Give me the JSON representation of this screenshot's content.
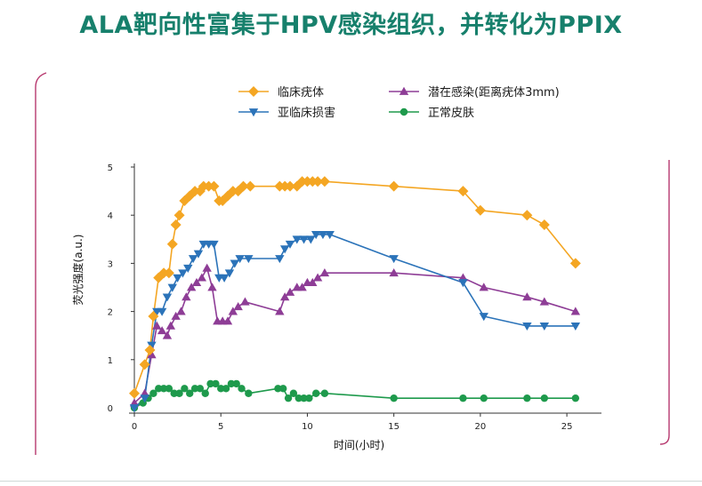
{
  "slide": {
    "title": "ALA靶向性富集于HPV感染组织，并转化为PPIX"
  },
  "chart_data": {
    "type": "line",
    "title": "",
    "xlabel": "时间(小时)",
    "ylabel": "荧光强度(a.u.)",
    "xlim": [
      0,
      27
    ],
    "ylim": [
      0,
      5
    ],
    "xticks": [
      0,
      5,
      10,
      15,
      20,
      25
    ],
    "yticks": [
      0,
      1,
      2,
      3,
      4,
      5
    ],
    "legend_position": "top",
    "series": [
      {
        "name": "临床疣体",
        "color": "#f4a623",
        "marker": "diamond",
        "x": [
          0,
          0.6,
          0.9,
          1.1,
          1.4,
          1.7,
          2.0,
          2.2,
          2.4,
          2.6,
          2.9,
          3.2,
          3.5,
          3.8,
          4.0,
          4.3,
          4.6,
          4.9,
          5.1,
          5.4,
          5.7,
          6.0,
          6.3,
          6.7,
          8.4,
          8.7,
          9.0,
          9.4,
          9.7,
          10.0,
          10.3,
          10.6,
          11.0,
          15.0,
          19.0,
          20.0,
          22.7,
          23.7,
          25.5
        ],
        "y": [
          0.3,
          0.9,
          1.2,
          1.9,
          2.7,
          2.8,
          2.8,
          3.4,
          3.8,
          4.0,
          4.3,
          4.4,
          4.5,
          4.5,
          4.6,
          4.6,
          4.6,
          4.3,
          4.3,
          4.4,
          4.5,
          4.5,
          4.6,
          4.6,
          4.6,
          4.6,
          4.6,
          4.6,
          4.7,
          4.7,
          4.7,
          4.7,
          4.7,
          4.6,
          4.5,
          4.1,
          4.0,
          3.8,
          3.0
        ]
      },
      {
        "name": "潜在感染(距离疣体3mm)",
        "color": "#8e3d96",
        "marker": "triangle-up",
        "x": [
          0,
          0.6,
          1.0,
          1.3,
          1.6,
          1.9,
          2.1,
          2.4,
          2.7,
          3.0,
          3.3,
          3.6,
          3.9,
          4.2,
          4.5,
          4.8,
          5.1,
          5.4,
          5.7,
          6.0,
          6.4,
          8.4,
          8.7,
          9.0,
          9.4,
          9.7,
          10.0,
          10.3,
          10.6,
          11.0,
          15.0,
          19.0,
          20.2,
          22.7,
          23.7,
          25.5
        ],
        "y": [
          0.1,
          0.3,
          1.1,
          1.7,
          1.6,
          1.5,
          1.7,
          1.9,
          2.0,
          2.3,
          2.5,
          2.6,
          2.7,
          2.9,
          2.5,
          1.8,
          1.8,
          1.8,
          2.0,
          2.1,
          2.2,
          2.0,
          2.3,
          2.4,
          2.5,
          2.5,
          2.6,
          2.6,
          2.7,
          2.8,
          2.8,
          2.7,
          2.5,
          2.3,
          2.2,
          2.0
        ]
      },
      {
        "name": "亚临床损害",
        "color": "#2b73b9",
        "marker": "triangle-down",
        "x": [
          0,
          0.6,
          1.0,
          1.3,
          1.6,
          1.9,
          2.2,
          2.5,
          2.8,
          3.1,
          3.4,
          3.7,
          4.0,
          4.3,
          4.6,
          4.9,
          5.2,
          5.5,
          5.8,
          6.1,
          6.6,
          8.4,
          8.7,
          9.0,
          9.4,
          9.8,
          10.2,
          10.5,
          10.9,
          11.3,
          15.0,
          19.0,
          20.2,
          22.7,
          23.7,
          25.5
        ],
        "y": [
          0.0,
          0.2,
          1.3,
          2.0,
          2.0,
          2.3,
          2.5,
          2.7,
          2.8,
          2.9,
          3.1,
          3.2,
          3.4,
          3.4,
          3.4,
          2.7,
          2.7,
          2.8,
          3.0,
          3.1,
          3.1,
          3.1,
          3.3,
          3.4,
          3.5,
          3.5,
          3.5,
          3.6,
          3.6,
          3.6,
          3.1,
          2.6,
          1.9,
          1.7,
          1.7,
          1.7
        ]
      },
      {
        "name": "正常皮肤",
        "color": "#1e9a4c",
        "marker": "circle",
        "x": [
          0,
          0.5,
          0.8,
          1.1,
          1.4,
          1.7,
          2.0,
          2.3,
          2.6,
          2.9,
          3.2,
          3.5,
          3.8,
          4.1,
          4.4,
          4.7,
          5.0,
          5.3,
          5.6,
          5.9,
          6.2,
          6.6,
          8.3,
          8.6,
          8.9,
          9.2,
          9.5,
          9.8,
          10.1,
          10.5,
          11.0,
          15.0,
          19.0,
          20.2,
          22.7,
          23.7,
          25.5
        ],
        "y": [
          0.0,
          0.1,
          0.2,
          0.3,
          0.4,
          0.4,
          0.4,
          0.3,
          0.3,
          0.4,
          0.3,
          0.4,
          0.4,
          0.3,
          0.5,
          0.5,
          0.4,
          0.4,
          0.5,
          0.5,
          0.4,
          0.3,
          0.4,
          0.4,
          0.2,
          0.3,
          0.2,
          0.2,
          0.2,
          0.3,
          0.3,
          0.2,
          0.2,
          0.2,
          0.2,
          0.2,
          0.2
        ]
      }
    ]
  }
}
